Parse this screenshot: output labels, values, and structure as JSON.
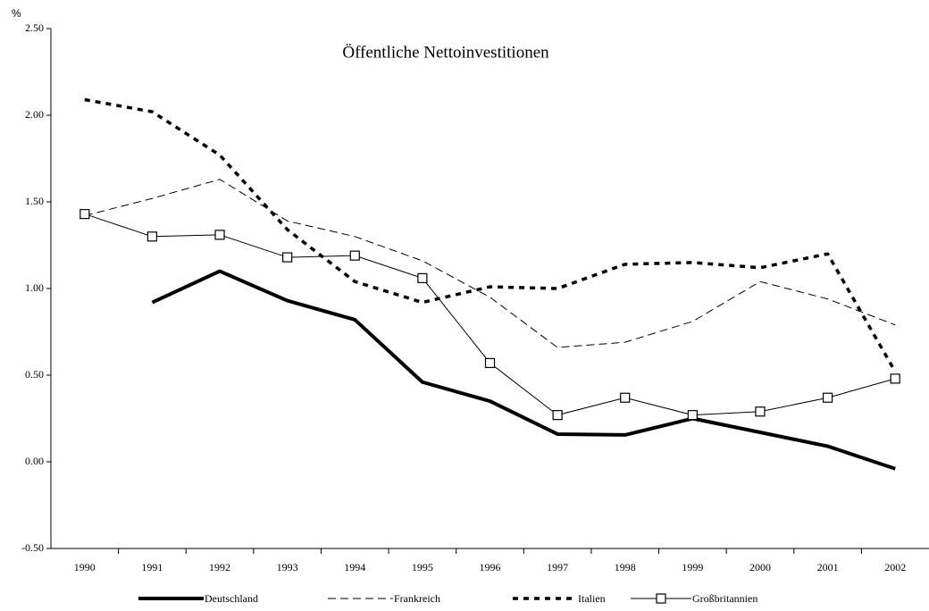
{
  "chart_data": {
    "type": "line",
    "title": "Öffentliche Nettoinvestitionen",
    "y_label": "%",
    "categories": [
      "1990",
      "1991",
      "1992",
      "1993",
      "1994",
      "1995",
      "1996",
      "1997",
      "1998",
      "1999",
      "2000",
      "2001",
      "2002"
    ],
    "ylim": [
      -0.5,
      2.5
    ],
    "yticks": [
      {
        "value": 2.5,
        "label": "2.50"
      },
      {
        "value": 2,
        "label": "2.00"
      },
      {
        "value": 1.5,
        "label": "1.50"
      },
      {
        "value": 1,
        "label": "1.00"
      },
      {
        "value": 0.5,
        "label": "0.50"
      },
      {
        "value": 0,
        "label": "0.00"
      },
      {
        "value": -0.5,
        "label": "-0.50"
      }
    ],
    "grid": false,
    "legend": "bottom",
    "series": [
      {
        "name": "Deutschland",
        "color": "#000000",
        "style": "thick",
        "values": [
          null,
          0.92,
          1.1,
          0.93,
          0.82,
          0.46,
          0.35,
          0.16,
          0.155,
          0.25,
          0.17,
          0.09,
          -0.04
        ]
      },
      {
        "name": "Frankreich",
        "color": "#000000",
        "style": "dashed",
        "values": [
          1.42,
          1.52,
          1.63,
          1.39,
          1.3,
          1.16,
          0.95,
          0.66,
          0.69,
          0.81,
          1.04,
          0.94,
          0.79
        ]
      },
      {
        "name": "Italien",
        "color": "#000000",
        "style": "dotted",
        "values": [
          2.09,
          2.02,
          1.77,
          1.34,
          1.04,
          0.92,
          1.01,
          1.0,
          1.14,
          1.15,
          1.12,
          1.2,
          0.52
        ]
      },
      {
        "name": "Großbritannien",
        "color": "#000000",
        "style": "marker",
        "values": [
          1.43,
          1.3,
          1.31,
          1.18,
          1.19,
          1.06,
          0.57,
          0.27,
          0.37,
          0.27,
          0.29,
          0.37,
          0.48
        ]
      }
    ]
  }
}
